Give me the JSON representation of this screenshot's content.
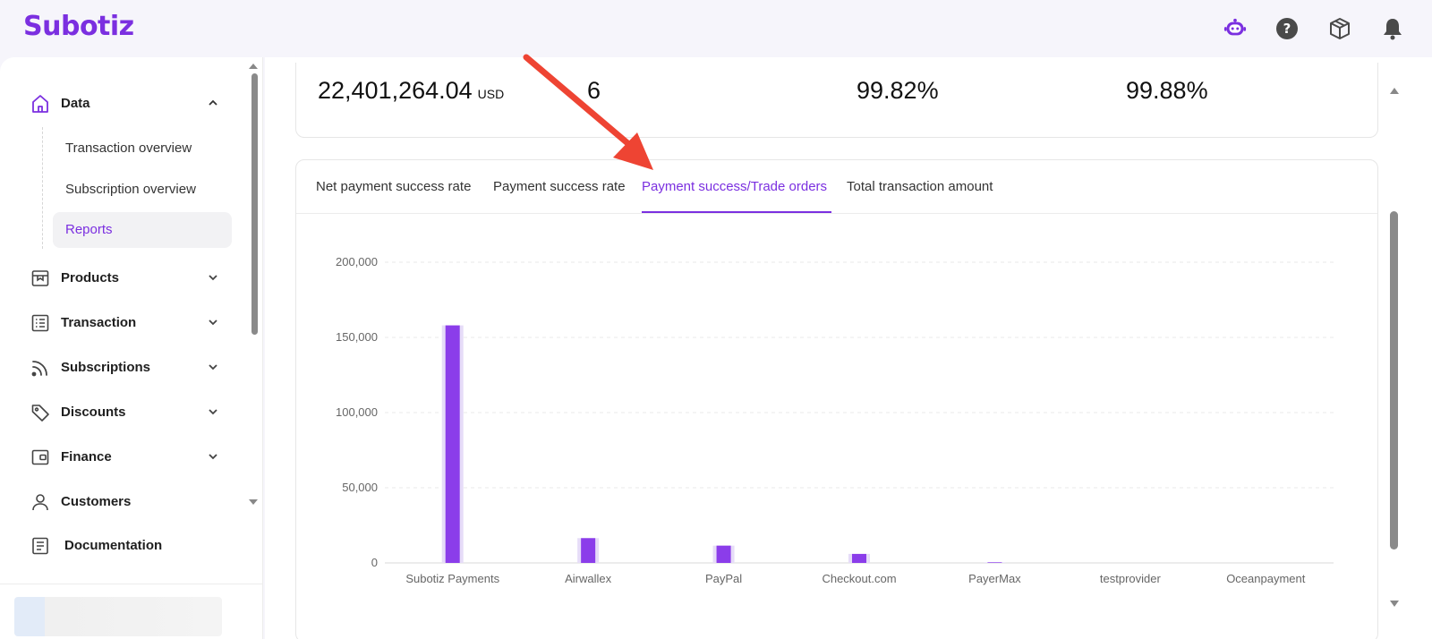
{
  "app": {
    "logo_text": "Subotiz"
  },
  "topbar": {
    "icons": [
      "assistant-bot-icon",
      "help-icon",
      "package-icon",
      "bell-icon"
    ],
    "accent": "#7b2fe0"
  },
  "sidebar": {
    "data_group": {
      "label": "Data",
      "items": [
        {
          "label": "Transaction overview"
        },
        {
          "label": "Subscription overview"
        },
        {
          "label": "Reports"
        }
      ]
    },
    "groups": [
      {
        "label": "Products"
      },
      {
        "label": "Transaction"
      },
      {
        "label": "Subscriptions"
      },
      {
        "label": "Discounts"
      },
      {
        "label": "Finance"
      },
      {
        "label": "Customers"
      },
      {
        "label": "Documentation"
      }
    ]
  },
  "stats": {
    "amount": "22,401,264.04",
    "amount_unit": "USD",
    "count": "6",
    "rate1": "99.82%",
    "rate2": "99.88%"
  },
  "tabs": [
    {
      "label": "Net payment success rate"
    },
    {
      "label": "Payment success rate"
    },
    {
      "label": "Payment success/Trade orders"
    },
    {
      "label": "Total transaction amount"
    }
  ],
  "active_tab": "Payment success/Trade orders",
  "chart_data": {
    "type": "bar",
    "categories": [
      "Subotiz Payments",
      "Airwallex",
      "PayPal",
      "Checkout.com",
      "PayerMax",
      "testprovider",
      "Oceanpayment"
    ],
    "series": [
      {
        "values": [
          158000,
          16500,
          11500,
          6000,
          400,
          0,
          0
        ]
      }
    ],
    "y_ticks": [
      "200,000",
      "150,000",
      "100,000",
      "50,000",
      "0"
    ],
    "ylim": [
      0,
      200000
    ],
    "grid": true,
    "colors": {
      "bar": "#8b3dea",
      "bar_halo": "#e6dcf8",
      "grid": "#e8e8e8",
      "tick": "#666666"
    }
  }
}
